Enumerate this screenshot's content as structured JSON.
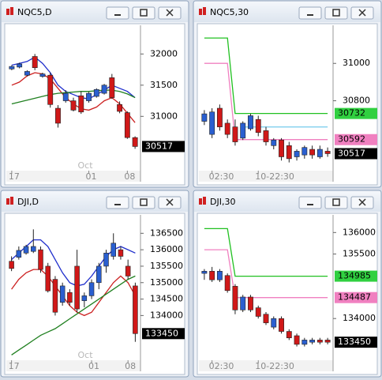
{
  "chart_data": [
    {
      "type": "candlestick",
      "title": "NQC5,D",
      "watermark": "Oct",
      "categories": [
        "17",
        null,
        null,
        null,
        null,
        null,
        null,
        null,
        null,
        null,
        "01",
        null,
        null,
        null,
        null,
        "08",
        null
      ],
      "open": [
        31760,
        31790,
        31660,
        31960,
        31640,
        31660,
        31130,
        31250,
        31250,
        31330,
        31250,
        31320,
        31370,
        31620,
        31190,
        31060,
        30660
      ],
      "high": [
        31820,
        31860,
        31740,
        32000,
        31700,
        31700,
        31180,
        31420,
        31300,
        31400,
        31390,
        31450,
        31520,
        31680,
        31240,
        31080,
        30680
      ],
      "low": [
        31740,
        31770,
        31640,
        31740,
        31620,
        31140,
        30820,
        31220,
        31080,
        31040,
        31220,
        31300,
        31350,
        31280,
        31050,
        30640,
        30480
      ],
      "close": [
        31800,
        31840,
        31720,
        31780,
        31680,
        31190,
        30890,
        31370,
        31100,
        31070,
        31370,
        31430,
        31500,
        31300,
        31080,
        30660,
        30517
      ],
      "up_color": "#2a5fd0",
      "down_color": "#d01818",
      "series": [
        {
          "color": "#1f2ecc",
          "values": [
            31820,
            31850,
            31880,
            31950,
            31850,
            31700,
            31500,
            31400,
            31350,
            31300,
            31280,
            31350,
            31420,
            31500,
            31450,
            31400,
            31300
          ]
        },
        {
          "color": "#cc2020",
          "values": [
            31500,
            31550,
            31650,
            31700,
            31680,
            31600,
            31450,
            31300,
            31200,
            31120,
            31100,
            31150,
            31250,
            31300,
            31200,
            31050,
            30900
          ]
        },
        {
          "color": "#208020",
          "values": [
            31200,
            31230,
            31260,
            31290,
            31320,
            31350,
            31370,
            31380,
            31390,
            31400,
            31400,
            31410,
            31420,
            31420,
            31400,
            31360,
            31300
          ]
        }
      ],
      "ylim": [
        30130,
        32460
      ],
      "yticks": [
        32000,
        31500,
        31000
      ],
      "price_tags": [
        {
          "value": 30517,
          "color": "#000000"
        }
      ]
    },
    {
      "type": "candlestick",
      "title": "NQC5,30",
      "categories": [
        null,
        "02:30",
        null,
        null,
        null,
        null,
        null,
        "10-22:30",
        null,
        null,
        null,
        null,
        null,
        null,
        null,
        null,
        null
      ],
      "open": [
        30690,
        30620,
        30760,
        30680,
        30660,
        30600,
        30650,
        30700,
        30640,
        30560,
        30590,
        30560,
        30500,
        30510,
        30540,
        30500,
        30530
      ],
      "high": [
        30750,
        30760,
        30780,
        30700,
        30700,
        30690,
        30730,
        30720,
        30660,
        30600,
        30600,
        30580,
        30540,
        30560,
        30560,
        30560,
        30550
      ],
      "low": [
        30670,
        30600,
        30640,
        30600,
        30560,
        30590,
        30640,
        30610,
        30560,
        30540,
        30480,
        30470,
        30480,
        30490,
        30490,
        30490,
        30500
      ],
      "close": [
        30730,
        30740,
        30660,
        30620,
        30580,
        30680,
        30720,
        30630,
        30580,
        30590,
        30500,
        30490,
        30530,
        30550,
        30510,
        30540,
        30517
      ],
      "up_color": "#2a5fd0",
      "down_color": "#d01818",
      "series": [
        {
          "color": "#20c020",
          "values": [
            31136,
            31136,
            31136,
            31136,
            30732,
            30732,
            30732,
            30732,
            30732,
            30732,
            30732,
            30732,
            30732,
            30732,
            30732,
            30732,
            30732
          ]
        },
        {
          "color": "#f080c0",
          "values": [
            31000,
            31000,
            31000,
            31000,
            30592,
            30592,
            30592,
            30592,
            30592,
            30592,
            30592,
            30592,
            30592,
            30592,
            30592,
            30592,
            30592
          ]
        },
        {
          "color": "#80cfee",
          "values": [
            null,
            null,
            null,
            null,
            null,
            30660,
            30660,
            30660,
            30660,
            30660,
            30660,
            30660,
            30660,
            30660,
            30660,
            30660,
            30660
          ]
        }
      ],
      "ylim": [
        30426,
        31204
      ],
      "yticks": [
        31000,
        30800
      ],
      "price_tags": [
        {
          "value": 30732,
          "color": "#30d040"
        },
        {
          "value": 30592,
          "color": "#f080c0"
        },
        {
          "value": 30517,
          "color": "#000000"
        }
      ]
    },
    {
      "type": "candlestick",
      "title": "DJI,D",
      "watermark": "Oct",
      "categories": [
        "17",
        null,
        null,
        null,
        null,
        null,
        null,
        null,
        null,
        null,
        null,
        "01",
        null,
        null,
        null,
        null,
        "08",
        null
      ],
      "open": [
        135650,
        135770,
        135900,
        135950,
        136000,
        135500,
        135100,
        134400,
        134700,
        135500,
        134450,
        134600,
        135000,
        135500,
        135800,
        136000,
        135500,
        134900
      ],
      "high": [
        135800,
        136100,
        136150,
        136620,
        136100,
        135600,
        135200,
        135000,
        134800,
        136000,
        134700,
        135100,
        135600,
        136000,
        136500,
        136100,
        135700,
        135000
      ],
      "low": [
        135350,
        135700,
        135850,
        135900,
        135300,
        134700,
        134000,
        134300,
        134300,
        134100,
        134250,
        134500,
        134800,
        135300,
        135700,
        135700,
        135100,
        133200
      ],
      "close": [
        135430,
        135980,
        136100,
        136100,
        135400,
        134750,
        134100,
        134900,
        134400,
        134200,
        134600,
        135000,
        135500,
        135900,
        136200,
        135800,
        135200,
        133450
      ],
      "up_color": "#2a5fd0",
      "down_color": "#d01818",
      "series": [
        {
          "color": "#1f2ecc",
          "values": [
            135700,
            135900,
            136100,
            136300,
            136300,
            136100,
            135700,
            135300,
            135000,
            134900,
            134950,
            135200,
            135500,
            135800,
            136000,
            136100,
            136000,
            135900
          ]
        },
        {
          "color": "#cc2020",
          "values": [
            134800,
            135100,
            135300,
            135400,
            135400,
            135200,
            134900,
            134600,
            134300,
            134100,
            134000,
            134100,
            134400,
            134700,
            135000,
            135200,
            135000,
            134600
          ]
        },
        {
          "color": "#208020",
          "values": [
            132800,
            132950,
            133100,
            133250,
            133400,
            133500,
            133600,
            133750,
            133900,
            134050,
            134200,
            134350,
            134500,
            134650,
            134800,
            134950,
            135100,
            135200
          ]
        }
      ],
      "ylim": [
        132640,
        137060
      ],
      "yticks": [
        136500,
        136000,
        135500,
        135000,
        134500,
        134000
      ],
      "price_tags": [
        {
          "value": 133450,
          "color": "#000000"
        }
      ]
    },
    {
      "type": "candlestick",
      "title": "DJI,30",
      "categories": [
        null,
        "02:30",
        null,
        null,
        null,
        null,
        null,
        "10-22:30",
        null,
        null,
        null,
        null,
        null,
        null,
        null,
        null,
        null
      ],
      "open": [
        135050,
        135100,
        134900,
        135000,
        134750,
        134200,
        134500,
        134250,
        134100,
        133800,
        134000,
        133700,
        133600,
        133400,
        133450,
        133500,
        133500
      ],
      "high": [
        135150,
        135200,
        135150,
        135050,
        134800,
        134550,
        134550,
        134300,
        134150,
        134050,
        134050,
        133750,
        133650,
        133550,
        133550,
        133550,
        133550
      ],
      "low": [
        134900,
        134850,
        134850,
        134600,
        134100,
        134150,
        134150,
        134000,
        133850,
        133750,
        133650,
        133500,
        133350,
        133350,
        133400,
        133400,
        133400
      ],
      "close": [
        135100,
        134900,
        135100,
        134650,
        134200,
        134500,
        134200,
        134050,
        133900,
        134000,
        133700,
        133550,
        133400,
        133500,
        133500,
        133450,
        133450
      ],
      "up_color": "#2a5fd0",
      "down_color": "#d01818",
      "series": [
        {
          "color": "#20c020",
          "values": [
            136090,
            136090,
            136090,
            136090,
            134985,
            134985,
            134985,
            134985,
            134985,
            134985,
            134985,
            134985,
            134985,
            134985,
            134985,
            134985,
            134985
          ]
        },
        {
          "color": "#f080c0",
          "values": [
            135600,
            135600,
            135600,
            135600,
            134487,
            134487,
            134487,
            134487,
            134487,
            134487,
            134487,
            134487,
            134487,
            134487,
            134487,
            134487,
            134487
          ]
        }
      ],
      "ylim": [
        133030,
        136410
      ],
      "yticks": [
        136000,
        135500,
        134000
      ],
      "price_tags": [
        {
          "value": 134985,
          "color": "#30d040"
        },
        {
          "value": 134487,
          "color": "#f080c0"
        },
        {
          "value": 133450,
          "color": "#000000"
        }
      ]
    }
  ]
}
